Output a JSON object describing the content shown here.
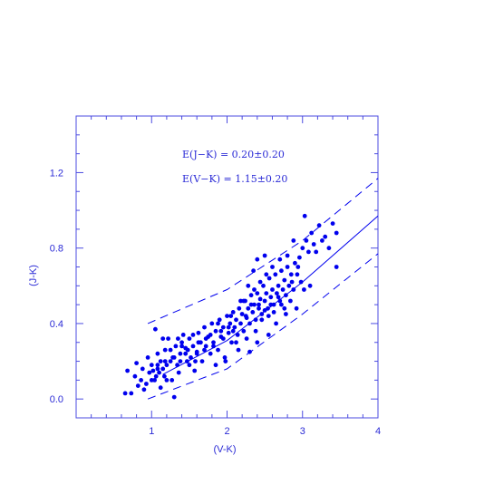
{
  "chart_data": {
    "type": "scatter",
    "xlabel": "(V-K)",
    "ylabel": "(J-K)",
    "xlim": [
      0.0,
      4.0
    ],
    "ylim": [
      -0.1,
      1.5
    ],
    "x_ticks": [
      1,
      2,
      3,
      4
    ],
    "x_tick_labels": [
      "1",
      "2",
      "3",
      "4"
    ],
    "y_ticks": [
      0.0,
      0.4,
      0.8,
      1.2
    ],
    "y_tick_labels": [
      "0.0",
      "0.4",
      "0.8",
      "1.2"
    ],
    "grid": false,
    "color": "#0000ee",
    "annotations": [
      "E(J−K)  =  0.20±0.20",
      "E(V−K)  =  1.15±0.20"
    ],
    "lines": [
      {
        "style": "solid",
        "x": [
          1.15,
          2.0,
          3.0,
          4.0
        ],
        "y": [
          0.13,
          0.31,
          0.62,
          0.97
        ]
      },
      {
        "style": "dashed",
        "x": [
          0.95,
          2.0,
          3.0,
          4.0
        ],
        "y": [
          0.4,
          0.58,
          0.84,
          1.17
        ]
      },
      {
        "style": "dashed",
        "x": [
          0.95,
          2.0,
          3.0,
          4.0
        ],
        "y": [
          0.0,
          0.16,
          0.45,
          0.77
        ]
      }
    ],
    "points": [
      [
        0.65,
        0.03
      ],
      [
        0.73,
        0.03
      ],
      [
        0.68,
        0.15
      ],
      [
        0.78,
        0.12
      ],
      [
        0.8,
        0.19
      ],
      [
        0.82,
        0.07
      ],
      [
        0.86,
        0.1
      ],
      [
        0.88,
        0.16
      ],
      [
        0.9,
        0.05
      ],
      [
        0.93,
        0.08
      ],
      [
        0.97,
        0.14
      ],
      [
        1.0,
        0.18
      ],
      [
        1.02,
        0.15
      ],
      [
        1.04,
        0.1
      ],
      [
        1.06,
        0.12
      ],
      [
        1.08,
        0.18
      ],
      [
        1.08,
        0.24
      ],
      [
        1.1,
        0.14
      ],
      [
        1.12,
        0.2
      ],
      [
        1.15,
        0.16
      ],
      [
        1.17,
        0.12
      ],
      [
        1.18,
        0.26
      ],
      [
        1.2,
        0.18
      ],
      [
        1.22,
        0.32
      ],
      [
        1.25,
        0.2
      ],
      [
        1.27,
        0.1
      ],
      [
        1.3,
        0.22
      ],
      [
        1.32,
        0.28
      ],
      [
        1.34,
        0.18
      ],
      [
        1.36,
        0.14
      ],
      [
        1.38,
        0.24
      ],
      [
        1.4,
        0.3
      ],
      [
        1.42,
        0.34
      ],
      [
        1.45,
        0.27
      ],
      [
        1.47,
        0.2
      ],
      [
        1.5,
        0.32
      ],
      [
        1.52,
        0.22
      ],
      [
        1.55,
        0.28
      ],
      [
        1.57,
        0.15
      ],
      [
        1.6,
        0.25
      ],
      [
        1.62,
        0.35
      ],
      [
        1.65,
        0.3
      ],
      [
        1.67,
        0.2
      ],
      [
        1.7,
        0.38
      ],
      [
        1.72,
        0.28
      ],
      [
        1.75,
        0.33
      ],
      [
        1.78,
        0.24
      ],
      [
        1.8,
        0.4
      ],
      [
        1.82,
        0.3
      ],
      [
        1.85,
        0.36
      ],
      [
        1.88,
        0.26
      ],
      [
        1.9,
        0.42
      ],
      [
        1.92,
        0.33
      ],
      [
        1.95,
        0.38
      ],
      [
        1.97,
        0.22
      ],
      [
        2.0,
        0.44
      ],
      [
        2.02,
        0.35
      ],
      [
        2.04,
        0.4
      ],
      [
        2.06,
        0.3
      ],
      [
        2.08,
        0.46
      ],
      [
        2.1,
        0.38
      ],
      [
        2.12,
        0.42
      ],
      [
        2.14,
        0.34
      ],
      [
        2.16,
        0.48
      ],
      [
        2.18,
        0.4
      ],
      [
        2.2,
        0.45
      ],
      [
        2.22,
        0.36
      ],
      [
        2.24,
        0.52
      ],
      [
        2.26,
        0.43
      ],
      [
        2.28,
        0.48
      ],
      [
        2.3,
        0.4
      ],
      [
        2.32,
        0.55
      ],
      [
        2.34,
        0.46
      ],
      [
        2.36,
        0.5
      ],
      [
        2.38,
        0.42
      ],
      [
        2.4,
        0.56
      ],
      [
        2.42,
        0.48
      ],
      [
        2.44,
        0.53
      ],
      [
        2.46,
        0.45
      ],
      [
        2.48,
        0.6
      ],
      [
        2.5,
        0.52
      ],
      [
        2.52,
        0.56
      ],
      [
        2.54,
        0.48
      ],
      [
        2.56,
        0.64
      ],
      [
        2.58,
        0.54
      ],
      [
        2.6,
        0.58
      ],
      [
        2.62,
        0.5
      ],
      [
        2.64,
        0.66
      ],
      [
        2.66,
        0.56
      ],
      [
        2.68,
        0.6
      ],
      [
        2.7,
        0.52
      ],
      [
        2.72,
        0.68
      ],
      [
        2.74,
        0.58
      ],
      [
        2.76,
        0.63
      ],
      [
        2.78,
        0.55
      ],
      [
        2.8,
        0.7
      ],
      [
        2.82,
        0.6
      ],
      [
        2.85,
        0.66
      ],
      [
        2.88,
        0.58
      ],
      [
        2.9,
        0.72
      ],
      [
        2.93,
        0.66
      ],
      [
        2.96,
        0.75
      ],
      [
        3.0,
        0.8
      ],
      [
        3.03,
        0.97
      ],
      [
        3.05,
        0.84
      ],
      [
        3.08,
        0.78
      ],
      [
        3.1,
        0.6
      ],
      [
        3.12,
        0.88
      ],
      [
        3.15,
        0.82
      ],
      [
        3.18,
        0.78
      ],
      [
        3.22,
        0.92
      ],
      [
        3.26,
        0.84
      ],
      [
        3.3,
        0.86
      ],
      [
        3.35,
        0.8
      ],
      [
        3.4,
        0.93
      ],
      [
        3.45,
        0.88
      ],
      [
        3.45,
        0.7
      ],
      [
        3.02,
        0.58
      ],
      [
        2.92,
        0.48
      ],
      [
        2.78,
        0.45
      ],
      [
        2.65,
        0.4
      ],
      [
        2.55,
        0.34
      ],
      [
        2.4,
        0.3
      ],
      [
        2.3,
        0.25
      ],
      [
        2.15,
        0.26
      ],
      [
        1.98,
        0.2
      ],
      [
        1.85,
        0.18
      ],
      [
        1.7,
        0.26
      ],
      [
        1.55,
        0.34
      ],
      [
        1.4,
        0.28
      ],
      [
        1.3,
        0.01
      ],
      [
        1.25,
        0.26
      ],
      [
        1.15,
        0.32
      ],
      [
        1.05,
        0.37
      ],
      [
        2.22,
        0.52
      ],
      [
        2.28,
        0.6
      ],
      [
        2.36,
        0.58
      ],
      [
        2.44,
        0.62
      ],
      [
        2.52,
        0.66
      ],
      [
        2.6,
        0.7
      ],
      [
        2.7,
        0.74
      ],
      [
        2.8,
        0.76
      ],
      [
        2.88,
        0.84
      ],
      [
        2.4,
        0.74
      ],
      [
        2.5,
        0.76
      ],
      [
        2.35,
        0.68
      ],
      [
        2.18,
        0.52
      ],
      [
        2.08,
        0.36
      ],
      [
        1.95,
        0.32
      ],
      [
        1.88,
        0.4
      ],
      [
        1.78,
        0.34
      ],
      [
        1.6,
        0.24
      ],
      [
        1.5,
        0.18
      ],
      [
        1.45,
        0.24
      ],
      [
        1.35,
        0.32
      ],
      [
        1.28,
        0.22
      ],
      [
        1.2,
        0.1
      ],
      [
        1.12,
        0.06
      ],
      [
        1.0,
        0.1
      ],
      [
        0.95,
        0.22
      ],
      [
        2.55,
        0.44
      ],
      [
        2.62,
        0.46
      ],
      [
        2.72,
        0.5
      ],
      [
        2.84,
        0.52
      ],
      [
        2.98,
        0.62
      ],
      [
        2.46,
        0.42
      ],
      [
        2.38,
        0.36
      ],
      [
        2.26,
        0.32
      ],
      [
        2.12,
        0.3
      ],
      [
        2.05,
        0.44
      ],
      [
        2.25,
        0.44
      ],
      [
        2.32,
        0.5
      ],
      [
        2.42,
        0.5
      ],
      [
        2.5,
        0.47
      ],
      [
        2.58,
        0.5
      ],
      [
        2.68,
        0.54
      ],
      [
        2.76,
        0.48
      ],
      [
        2.86,
        0.62
      ],
      [
        2.94,
        0.7
      ],
      [
        1.62,
        0.3
      ],
      [
        1.72,
        0.32
      ],
      [
        1.82,
        0.28
      ],
      [
        1.92,
        0.36
      ],
      [
        2.02,
        0.38
      ],
      [
        1.58,
        0.2
      ],
      [
        1.48,
        0.26
      ],
      [
        1.38,
        0.2
      ],
      [
        1.18,
        0.2
      ],
      [
        1.08,
        0.16
      ]
    ]
  }
}
